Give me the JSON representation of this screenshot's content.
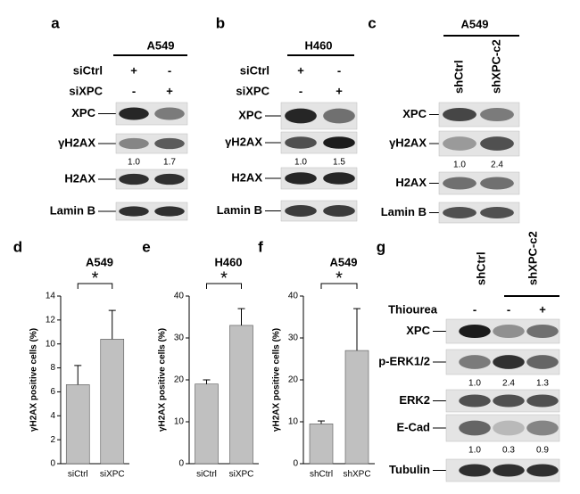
{
  "panels": [
    {
      "letter": "a",
      "cell_line": "A549",
      "conditions": [
        {
          "label": "siCtrl",
          "signs": [
            "+",
            "-"
          ]
        },
        {
          "label": "siXPC",
          "signs": [
            "-",
            "+"
          ]
        }
      ],
      "blots": [
        {
          "label": "XPC"
        },
        {
          "label": "γH2AX",
          "quant": [
            "1.0",
            "1.7"
          ]
        },
        {
          "label": "H2AX"
        },
        {
          "label": "Lamin B"
        }
      ]
    },
    {
      "letter": "b",
      "cell_line": "H460",
      "conditions": [
        {
          "label": "siCtrl",
          "signs": [
            "+",
            "-"
          ]
        },
        {
          "label": "siXPC",
          "signs": [
            "-",
            "+"
          ]
        }
      ],
      "blots": [
        {
          "label": "XPC"
        },
        {
          "label": "γH2AX",
          "quant": [
            "1.0",
            "1.5"
          ]
        },
        {
          "label": "H2AX"
        },
        {
          "label": "Lamin B"
        }
      ]
    },
    {
      "letter": "c",
      "cell_line": "A549",
      "lanes": [
        "shCtrl",
        "shXPC-c2"
      ],
      "blots": [
        {
          "label": "XPC"
        },
        {
          "label": "γH2AX",
          "quant": [
            "1.0",
            "2.4"
          ]
        },
        {
          "label": "H2AX"
        },
        {
          "label": "Lamin B"
        }
      ]
    },
    {
      "letter": "g",
      "lanes": [
        "shCtrl",
        "shXPC-c2"
      ],
      "conditions": [
        {
          "label": "Thiourea",
          "signs": [
            "-",
            "-",
            "+"
          ]
        }
      ],
      "blots": [
        {
          "label": "XPC"
        },
        {
          "label": "p-ERK1/2",
          "quant": [
            "1.0",
            "2.4",
            "1.3"
          ]
        },
        {
          "label": "ERK2"
        },
        {
          "label": "E-Cad",
          "quant": [
            "1.0",
            "0.3",
            "0.9"
          ]
        },
        {
          "label": "Tubulin"
        }
      ]
    }
  ],
  "chart_data": [
    {
      "type": "bar",
      "letter": "d",
      "title": "A549",
      "annotation": "*",
      "ylabel": "γH2AX positive cells (%)",
      "categories": [
        "siCtrl",
        "siXPC"
      ],
      "values": [
        6.6,
        10.4
      ],
      "errors": [
        1.6,
        2.4
      ],
      "color": "#c0c0c0",
      "ylim": [
        0,
        14
      ],
      "yticks": [
        0,
        2,
        4,
        6,
        8,
        10,
        12,
        14
      ]
    },
    {
      "type": "bar",
      "letter": "e",
      "title": "H460",
      "annotation": "*",
      "ylabel": "γH2AX positive cells (%)",
      "categories": [
        "siCtrl",
        "siXPC"
      ],
      "values": [
        19,
        33
      ],
      "errors": [
        1,
        4
      ],
      "color": "#c0c0c0",
      "ylim": [
        0,
        40
      ],
      "yticks": [
        0,
        10,
        20,
        30,
        40
      ]
    },
    {
      "type": "bar",
      "letter": "f",
      "title": "A549",
      "annotation": "*",
      "ylabel": "γH2AX positive cells (%)",
      "categories": [
        "shCtrl",
        "shXPC"
      ],
      "values": [
        9.5,
        27
      ],
      "errors": [
        0.7,
        10
      ],
      "color": "#c0c0c0",
      "ylim": [
        0,
        40
      ],
      "yticks": [
        0,
        10,
        20,
        30,
        40
      ]
    }
  ]
}
